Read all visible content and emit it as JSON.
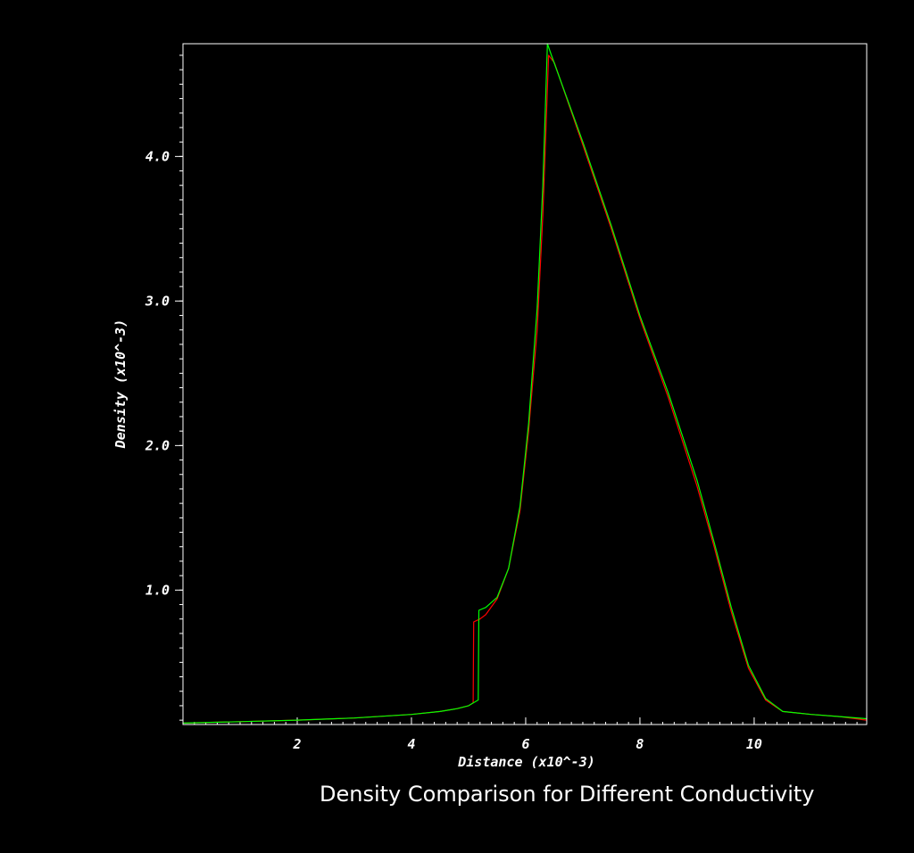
{
  "chart_data": {
    "type": "line",
    "title": "Density Comparison for Different Conductivity",
    "xlabel": "Distance (x10^-3)",
    "ylabel": "Density (x10^-3)",
    "xlim": [
      0,
      11.97
    ],
    "ylim": [
      0.07,
      4.78
    ],
    "x_ticks": [
      {
        "value": 2,
        "label": "2"
      },
      {
        "value": 4,
        "label": "4"
      },
      {
        "value": 6,
        "label": "6"
      },
      {
        "value": 8,
        "label": "8"
      },
      {
        "value": 10,
        "label": "10"
      }
    ],
    "y_ticks": [
      {
        "value": 1.0,
        "label": "1.0"
      },
      {
        "value": 2.0,
        "label": "2.0"
      },
      {
        "value": 3.0,
        "label": "3.0"
      },
      {
        "value": 4.0,
        "label": "4.0"
      }
    ],
    "grid": false,
    "legend": "none",
    "colors": {
      "background": "#000000",
      "frame": "#ffffff",
      "red_series": "#ff0000",
      "green_series": "#00ff00"
    },
    "series": [
      {
        "color": "#ff0000",
        "points": [
          [
            0.0,
            0.08
          ],
          [
            1.0,
            0.09
          ],
          [
            2.0,
            0.1
          ],
          [
            3.0,
            0.115
          ],
          [
            4.0,
            0.14
          ],
          [
            4.5,
            0.16
          ],
          [
            4.8,
            0.18
          ],
          [
            5.0,
            0.2
          ],
          [
            5.08,
            0.22
          ],
          [
            5.09,
            0.78
          ],
          [
            5.2,
            0.8
          ],
          [
            5.3,
            0.83
          ],
          [
            5.5,
            0.94
          ],
          [
            5.7,
            1.15
          ],
          [
            5.9,
            1.55
          ],
          [
            6.05,
            2.1
          ],
          [
            6.2,
            2.8
          ],
          [
            6.3,
            3.6
          ],
          [
            6.4,
            4.7
          ],
          [
            6.5,
            4.65
          ],
          [
            7.0,
            4.08
          ],
          [
            7.5,
            3.5
          ],
          [
            8.0,
            2.88
          ],
          [
            8.5,
            2.33
          ],
          [
            9.0,
            1.72
          ],
          [
            9.3,
            1.3
          ],
          [
            9.6,
            0.85
          ],
          [
            9.9,
            0.46
          ],
          [
            10.2,
            0.24
          ],
          [
            10.5,
            0.16
          ],
          [
            11.0,
            0.14
          ],
          [
            11.5,
            0.125
          ],
          [
            11.97,
            0.1
          ]
        ]
      },
      {
        "color": "#00ff00",
        "points": [
          [
            0.0,
            0.08
          ],
          [
            1.0,
            0.09
          ],
          [
            2.0,
            0.1
          ],
          [
            3.0,
            0.115
          ],
          [
            4.0,
            0.14
          ],
          [
            4.5,
            0.16
          ],
          [
            4.8,
            0.18
          ],
          [
            5.0,
            0.2
          ],
          [
            5.17,
            0.24
          ],
          [
            5.18,
            0.86
          ],
          [
            5.3,
            0.88
          ],
          [
            5.5,
            0.95
          ],
          [
            5.7,
            1.15
          ],
          [
            5.9,
            1.58
          ],
          [
            6.05,
            2.15
          ],
          [
            6.2,
            2.95
          ],
          [
            6.3,
            3.8
          ],
          [
            6.38,
            4.78
          ],
          [
            6.45,
            4.7
          ],
          [
            7.0,
            4.1
          ],
          [
            7.5,
            3.52
          ],
          [
            8.0,
            2.9
          ],
          [
            8.5,
            2.36
          ],
          [
            9.0,
            1.76
          ],
          [
            9.3,
            1.33
          ],
          [
            9.6,
            0.88
          ],
          [
            9.9,
            0.48
          ],
          [
            10.2,
            0.25
          ],
          [
            10.5,
            0.16
          ],
          [
            11.0,
            0.14
          ],
          [
            11.5,
            0.125
          ],
          [
            11.97,
            0.11
          ]
        ]
      }
    ]
  }
}
